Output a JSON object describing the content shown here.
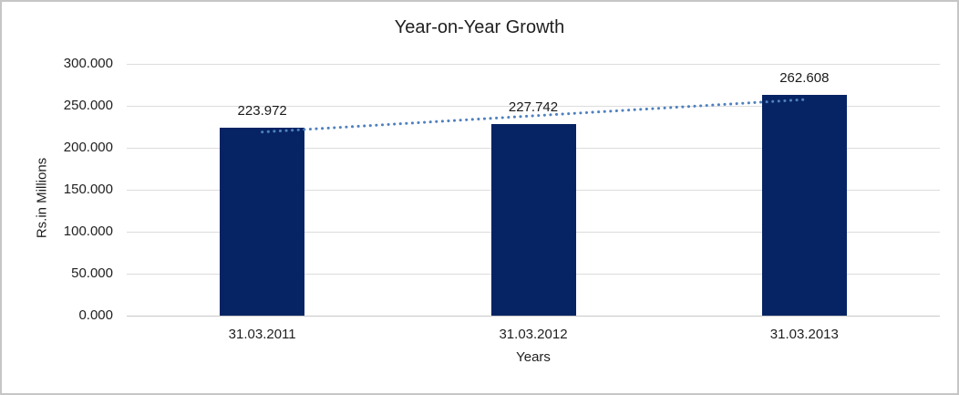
{
  "chart_data": {
    "type": "bar",
    "title": "Year-on-Year Growth",
    "xlabel": "Years",
    "ylabel": "Rs.in Millions",
    "categories": [
      "31.03.2011",
      "31.03.2012",
      "31.03.2013"
    ],
    "values": [
      223.972,
      227.742,
      262.608
    ],
    "value_labels": [
      "223.972",
      "227.742",
      "262.608"
    ],
    "ylim": [
      0,
      300
    ],
    "ytick_step": 50,
    "ytick_labels": [
      "0.000",
      "50.000",
      "100.000",
      "150.000",
      "200.000",
      "250.000",
      "300.000"
    ],
    "grid": "horizontal",
    "legend": "none",
    "trendline": {
      "type": "linear",
      "style": "dotted",
      "color": "#4F81BD"
    },
    "colors": {
      "bar": "#062464",
      "gridline": "#DCDCDC",
      "axis_line": "#C8C8C8",
      "text": "#1F1F1F",
      "frame_border": "#C6C6C6"
    }
  }
}
